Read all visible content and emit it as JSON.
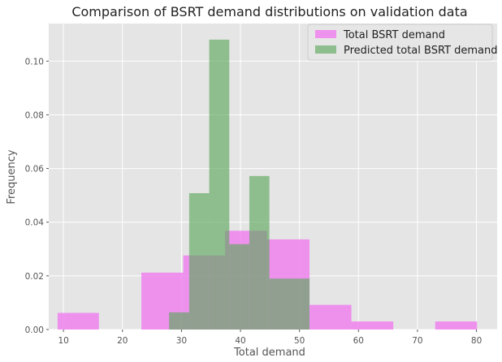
{
  "chart_data": {
    "type": "bar",
    "title": "Comparison of BSRT demand distributions on validation data",
    "xlabel": "Total demand",
    "ylabel": "Frequency",
    "xlim": [
      7.5,
      83.5
    ],
    "ylim": [
      0,
      0.114
    ],
    "xticks": [
      10,
      20,
      30,
      40,
      50,
      60,
      70,
      80
    ],
    "yticks": [
      0.0,
      0.02,
      0.04,
      0.06,
      0.08,
      0.1
    ],
    "ytick_labels": [
      "0.00",
      "0.02",
      "0.04",
      "0.06",
      "0.08",
      "0.10"
    ],
    "grid": true,
    "legend_position": "top-right",
    "series": [
      {
        "name": "Total BSRT demand",
        "color": "#ee82ee",
        "opacity": 0.85,
        "bins": [
          {
            "x0": 9.0,
            "x1": 16.0,
            "y": 0.0062
          },
          {
            "x0": 16.0,
            "x1": 23.2,
            "y": 0.0
          },
          {
            "x0": 23.2,
            "x1": 30.3,
            "y": 0.0212
          },
          {
            "x0": 30.3,
            "x1": 37.4,
            "y": 0.0276
          },
          {
            "x0": 37.4,
            "x1": 44.5,
            "y": 0.0368
          },
          {
            "x0": 44.5,
            "x1": 51.7,
            "y": 0.0336
          },
          {
            "x0": 51.7,
            "x1": 58.8,
            "y": 0.0092
          },
          {
            "x0": 58.8,
            "x1": 65.9,
            "y": 0.003
          },
          {
            "x0": 65.9,
            "x1": 73.0,
            "y": 0.0
          },
          {
            "x0": 73.0,
            "x1": 80.1,
            "y": 0.003
          }
        ]
      },
      {
        "name": "Predicted total BSRT demand",
        "color": "#5fa85f",
        "opacity": 0.65,
        "bins": [
          {
            "x0": 27.9,
            "x1": 31.3,
            "y": 0.0064
          },
          {
            "x0": 31.3,
            "x1": 34.7,
            "y": 0.0508
          },
          {
            "x0": 34.7,
            "x1": 38.1,
            "y": 0.108
          },
          {
            "x0": 38.1,
            "x1": 41.5,
            "y": 0.0318
          },
          {
            "x0": 41.5,
            "x1": 44.9,
            "y": 0.0572
          },
          {
            "x0": 44.9,
            "x1": 48.3,
            "y": 0.019
          },
          {
            "x0": 48.3,
            "x1": 51.7,
            "y": 0.019
          }
        ]
      }
    ]
  }
}
